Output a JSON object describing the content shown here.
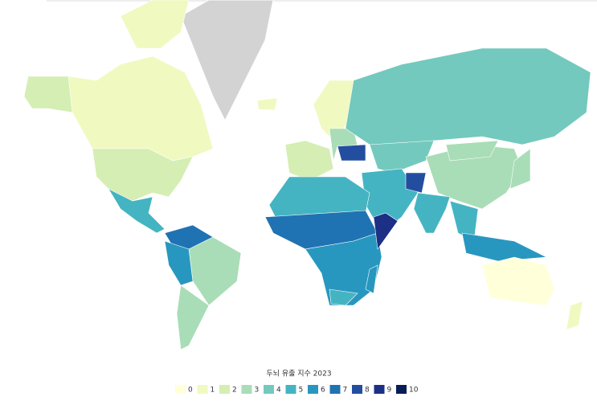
{
  "map": {
    "legend": {
      "title": "두뇌 유출 지수 2023",
      "items": [
        {
          "label": 0,
          "color": "#ffffd9"
        },
        {
          "label": 1,
          "color": "#f0f9c0"
        },
        {
          "label": 2,
          "color": "#d5eeb3"
        },
        {
          "label": 3,
          "color": "#a9ddb7"
        },
        {
          "label": 4,
          "color": "#73c9bd"
        },
        {
          "label": 5,
          "color": "#45b4c2"
        },
        {
          "label": 6,
          "color": "#2897bf"
        },
        {
          "label": 7,
          "color": "#2073b2"
        },
        {
          "label": 8,
          "color": "#234ea0"
        },
        {
          "label": 9,
          "color": "#1c3185"
        },
        {
          "label": 10,
          "color": "#081d58"
        }
      ]
    },
    "regions": {
      "values": [
        1,
        2,
        2,
        1,
        5,
        7,
        3,
        6,
        3,
        1,
        1,
        2,
        3,
        8,
        4,
        4,
        3,
        3,
        5,
        8,
        5,
        5,
        6,
        3,
        5,
        7,
        6,
        9,
        5,
        6,
        0,
        1
      ]
    }
  }
}
